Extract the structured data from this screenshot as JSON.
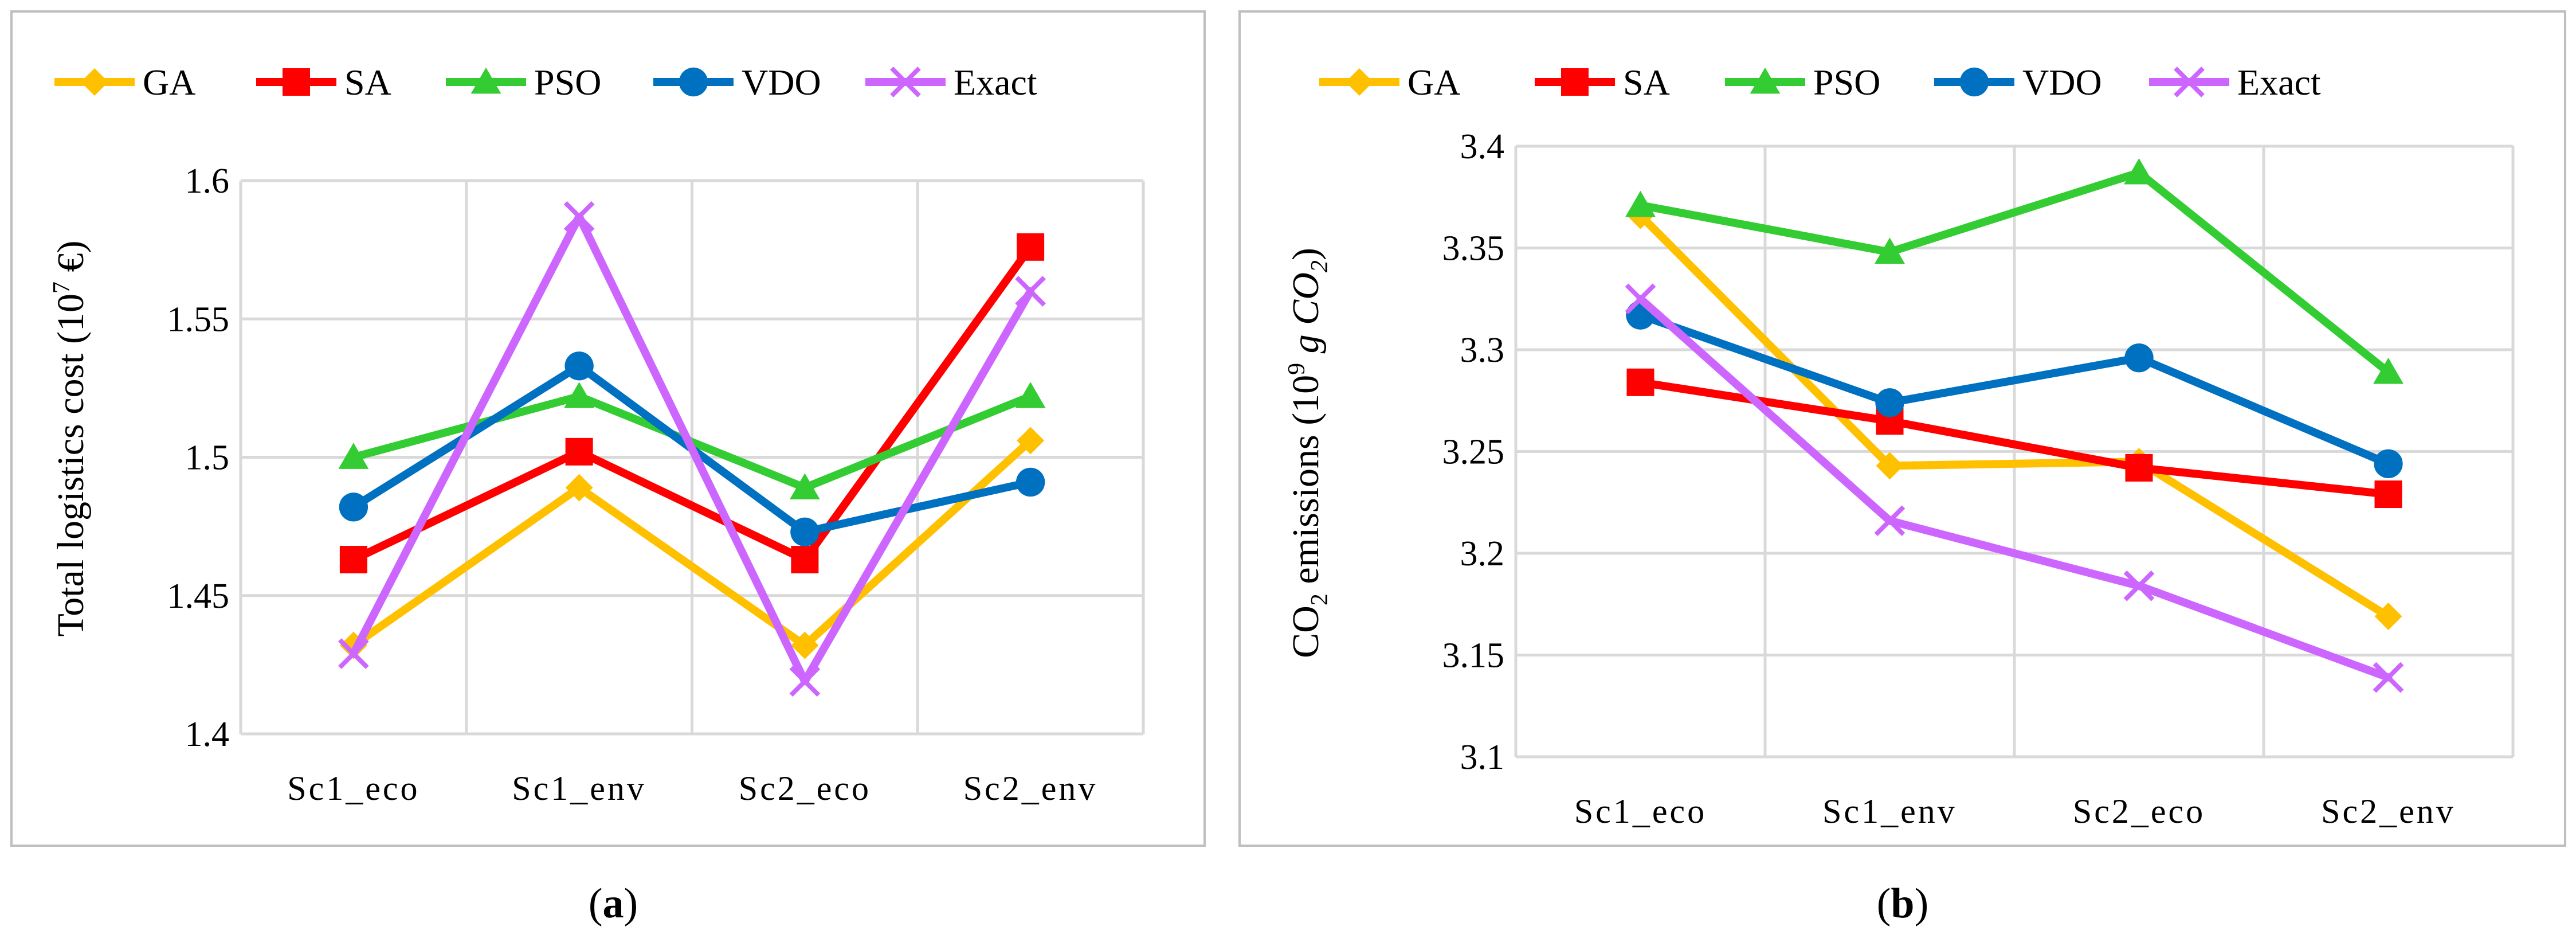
{
  "colors": {
    "GA": "#ffc000",
    "SA": "#ff0000",
    "PSO": "#33cc33",
    "VDO": "#0070c0",
    "Exact": "#cc66ff",
    "grid": "#d9d9d9",
    "frame": "#bfbfbf"
  },
  "legend": [
    {
      "name": "GA",
      "marker": "diamond"
    },
    {
      "name": "SA",
      "marker": "square"
    },
    {
      "name": "PSO",
      "marker": "triangle"
    },
    {
      "name": "VDO",
      "marker": "circle"
    },
    {
      "name": "Exact",
      "marker": "x"
    }
  ],
  "chart_data": [
    {
      "type": "line",
      "caption_open": "(",
      "caption_letter": "a",
      "caption_close": ")",
      "ylabel_main": "Total logistics cost (10",
      "ylabel_sup": "7",
      "ylabel_unit": " €)",
      "categories": [
        "Sc1_eco",
        "Sc1_env",
        "Sc2_eco",
        "Sc2_env"
      ],
      "ylim": [
        1.4,
        1.6
      ],
      "yticks": [
        "1.4",
        "1.45",
        "1.5",
        "1.55",
        "1.6"
      ],
      "grid": true,
      "legend_position": "top",
      "series": [
        {
          "name": "GA",
          "values": [
            1.432,
            1.489,
            1.432,
            1.506
          ]
        },
        {
          "name": "SA",
          "values": [
            1.463,
            1.502,
            1.463,
            1.576
          ]
        },
        {
          "name": "PSO",
          "values": [
            1.5,
            1.522,
            1.489,
            1.522
          ]
        },
        {
          "name": "VDO",
          "values": [
            1.482,
            1.533,
            1.473,
            1.491
          ]
        },
        {
          "name": "Exact",
          "values": [
            1.429,
            1.587,
            1.419,
            1.56
          ]
        }
      ]
    },
    {
      "type": "line",
      "caption_open": "(",
      "caption_letter": "b",
      "caption_close": ")",
      "ylabel_pre": "CO",
      "ylabel_sub": "2",
      "ylabel_mid": " emissions (10",
      "ylabel_sup": "9",
      "ylabel_unit": " g CO",
      "ylabel_unit_sub": "2",
      "ylabel_close": ")",
      "categories": [
        "Sc1_eco",
        "Sc1_env",
        "Sc2_eco",
        "Sc2_env"
      ],
      "ylim": [
        3.1,
        3.4
      ],
      "yticks": [
        "3.1",
        "3.15",
        "3.2",
        "3.25",
        "3.3",
        "3.35",
        "3.4"
      ],
      "grid": true,
      "legend_position": "top",
      "series": [
        {
          "name": "GA",
          "values": [
            3.366,
            3.243,
            3.245,
            3.169
          ]
        },
        {
          "name": "SA",
          "values": [
            3.284,
            3.265,
            3.242,
            3.229
          ]
        },
        {
          "name": "PSO",
          "values": [
            3.371,
            3.348,
            3.387,
            3.289
          ]
        },
        {
          "name": "VDO",
          "values": [
            3.317,
            3.274,
            3.296,
            3.244
          ]
        },
        {
          "name": "Exact",
          "values": [
            3.325,
            3.216,
            3.184,
            3.139
          ]
        }
      ]
    }
  ]
}
